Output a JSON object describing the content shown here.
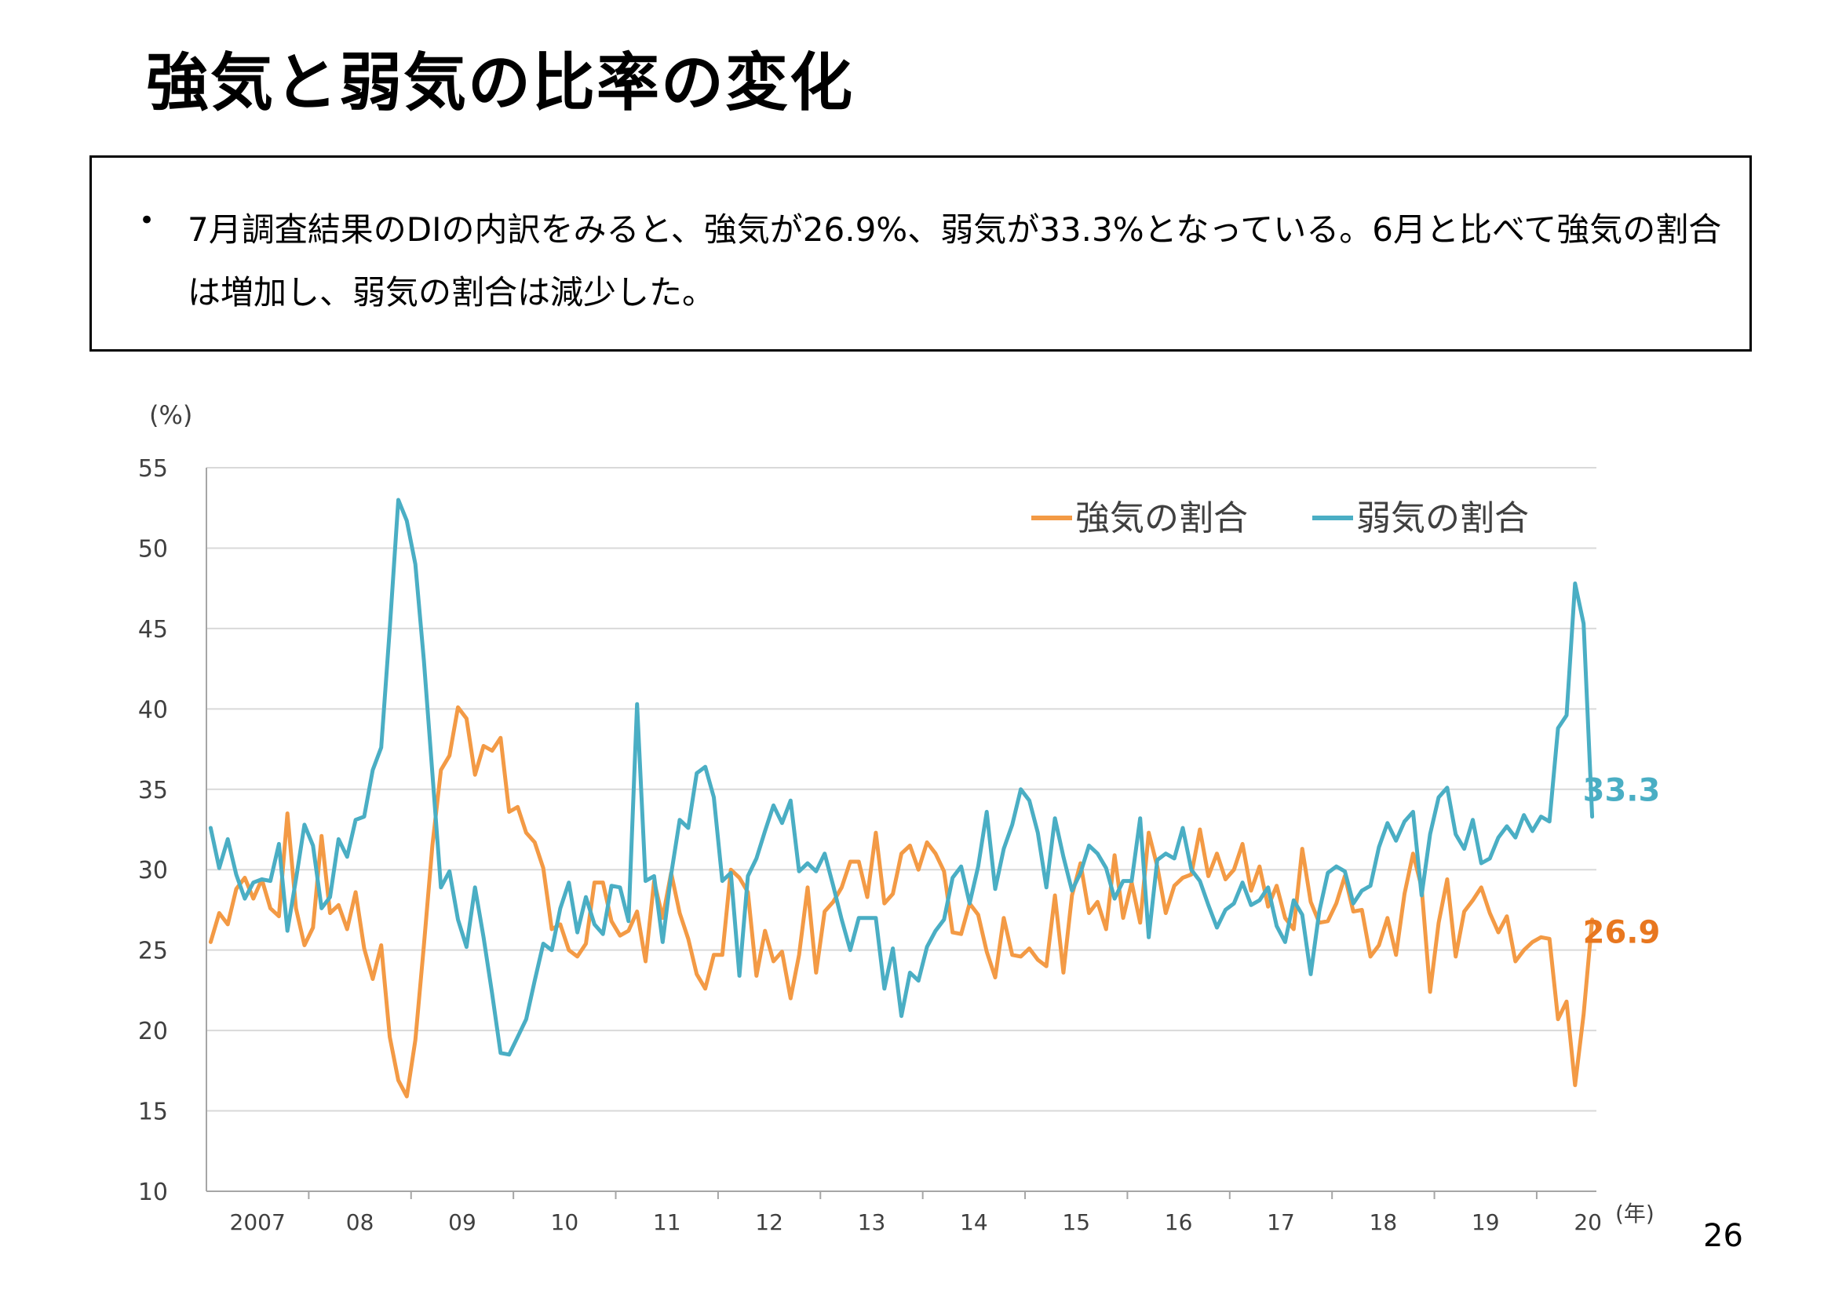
{
  "title": "強気と弱気の比率の変化",
  "summary": {
    "bullet": "•",
    "text": "7月調査結果のDIの内訳をみると、強気が26.9%、弱気が33.3%となっている。6月と比べて強気の割合は増加し、弱気の割合は減少した。"
  },
  "page_number": "26",
  "colors": {
    "bullish": "#f39a45",
    "bearish": "#4aaec4",
    "bullish_label": "#e8771f"
  },
  "chart_data": {
    "type": "line",
    "ylabel": "(%)",
    "xlabel": "(年)",
    "ylim": [
      10,
      55
    ],
    "yticks": [
      10,
      15,
      20,
      25,
      30,
      35,
      40,
      45,
      50,
      55
    ],
    "grid": "horizontal",
    "legend_position": "top-right",
    "x_start": "2007-01",
    "x_end": "2020-07",
    "x_tick_labels": [
      "2007",
      "08",
      "09",
      "10",
      "11",
      "12",
      "13",
      "14",
      "15",
      "16",
      "17",
      "18",
      "19",
      "20"
    ],
    "x_tick_years": [
      2007,
      2008,
      2009,
      2010,
      2011,
      2012,
      2013,
      2014,
      2015,
      2016,
      2017,
      2018,
      2019,
      2020
    ],
    "series": [
      {
        "name": "強気の割合",
        "end_label": "26.9",
        "values": [
          25.5,
          27.3,
          26.6,
          28.8,
          29.5,
          28.2,
          29.4,
          27.6,
          27.1,
          33.5,
          27.6,
          25.3,
          26.4,
          32.1,
          27.3,
          27.8,
          26.3,
          28.6,
          25.1,
          23.2,
          25.3,
          19.6,
          16.9,
          15.9,
          19.4,
          25.3,
          31.5,
          36.2,
          37.1,
          40.1,
          39.4,
          35.9,
          37.7,
          37.4,
          38.2,
          33.6,
          33.9,
          32.3,
          31.7,
          30.1,
          26.3,
          26.6,
          25.0,
          24.6,
          25.4,
          29.2,
          29.2,
          26.8,
          25.9,
          26.2,
          27.4,
          24.3,
          29.3,
          27.0,
          29.8,
          27.3,
          25.7,
          23.5,
          22.6,
          24.7,
          24.7,
          30.0,
          29.5,
          28.6,
          23.4,
          26.2,
          24.3,
          24.9,
          22.0,
          24.7,
          28.9,
          23.6,
          27.4,
          28.0,
          28.9,
          30.5,
          30.5,
          28.3,
          32.3,
          27.9,
          28.5,
          31.0,
          31.5,
          30.0,
          31.7,
          31.0,
          29.9,
          26.1,
          26.0,
          27.9,
          27.2,
          24.9,
          23.3,
          27.0,
          24.7,
          24.6,
          25.1,
          24.4,
          24.0,
          28.4,
          23.6,
          28.4,
          30.4,
          27.3,
          28.0,
          26.3,
          30.9,
          27.0,
          29.2,
          26.7,
          32.3,
          30.2,
          27.3,
          29.0,
          29.5,
          29.7,
          32.5,
          29.6,
          31.0,
          29.4,
          30.0,
          31.6,
          28.7,
          30.2,
          27.7,
          29.0,
          27.0,
          26.3,
          31.3,
          28.0,
          26.7,
          26.8,
          27.9,
          29.6,
          27.4,
          27.5,
          24.6,
          25.3,
          27.0,
          24.7,
          28.5,
          31.0,
          28.9,
          22.4,
          26.7,
          29.4,
          24.6,
          27.4,
          28.1,
          28.9,
          27.3,
          26.1,
          27.1,
          24.3,
          25.0,
          25.5,
          25.8,
          25.7,
          20.7,
          21.8,
          16.6,
          21.0,
          26.9
        ]
      },
      {
        "name": "弱気の割合",
        "end_label": "33.3",
        "values": [
          32.6,
          30.1,
          31.9,
          29.7,
          28.2,
          29.2,
          29.4,
          29.3,
          31.6,
          26.2,
          29.4,
          32.8,
          31.5,
          27.6,
          28.3,
          31.9,
          30.8,
          33.1,
          33.3,
          36.2,
          37.6,
          45.0,
          53.0,
          51.7,
          49.0,
          43.0,
          36.0,
          28.9,
          29.9,
          26.9,
          25.2,
          28.9,
          25.8,
          22.3,
          18.6,
          18.5,
          19.6,
          20.7,
          23.1,
          25.4,
          25.0,
          27.6,
          29.2,
          26.1,
          28.3,
          26.6,
          26.0,
          29.0,
          28.9,
          26.8,
          40.3,
          29.3,
          29.6,
          25.5,
          29.7,
          33.1,
          32.6,
          36.0,
          36.4,
          34.5,
          29.3,
          29.8,
          23.4,
          29.6,
          30.7,
          32.4,
          34.0,
          32.9,
          34.3,
          29.9,
          30.4,
          29.9,
          31.0,
          29.0,
          26.9,
          25.0,
          27.0,
          27.0,
          27.0,
          22.6,
          25.1,
          20.9,
          23.6,
          23.1,
          25.2,
          26.2,
          26.9,
          29.5,
          30.2,
          27.9,
          30.2,
          33.6,
          28.8,
          31.3,
          32.8,
          35.0,
          34.3,
          32.3,
          28.9,
          33.2,
          30.8,
          28.7,
          29.8,
          31.5,
          31.0,
          30.1,
          28.2,
          29.3,
          29.3,
          33.2,
          25.8,
          30.6,
          31.0,
          30.7,
          32.6,
          30.0,
          29.3,
          27.8,
          26.4,
          27.5,
          27.9,
          29.2,
          27.8,
          28.1,
          28.9,
          26.5,
          25.5,
          28.1,
          27.2,
          23.5,
          27.4,
          29.8,
          30.2,
          29.9,
          27.9,
          28.7,
          29.0,
          31.4,
          32.9,
          31.8,
          33.0,
          33.6,
          28.4,
          32.2,
          34.5,
          35.1,
          32.2,
          31.3,
          33.1,
          30.4,
          30.7,
          32.0,
          32.7,
          32.0,
          33.4,
          32.4,
          33.3,
          33.0,
          38.8,
          39.6,
          47.8,
          45.3,
          33.3
        ]
      }
    ]
  }
}
